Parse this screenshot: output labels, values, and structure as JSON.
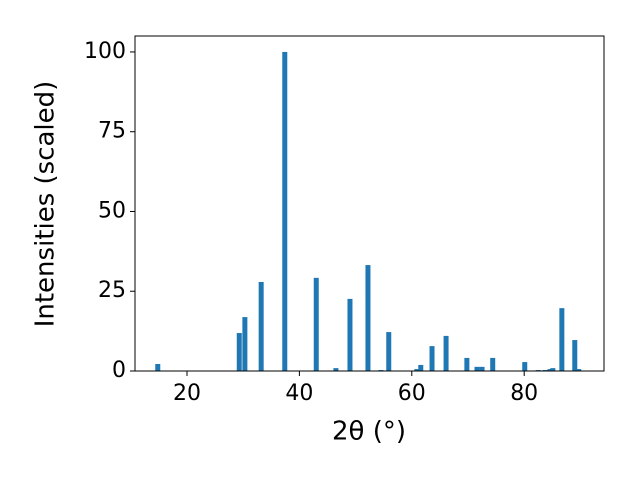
{
  "chart_data": {
    "type": "bar",
    "xlabel": "2θ (°)",
    "ylabel": "Intensities (scaled)",
    "color": "#1f77b4",
    "x": [
      14.8,
      29.3,
      30.3,
      33.2,
      37.4,
      43.0,
      46.5,
      49.0,
      52.2,
      54.5,
      55.9,
      60.9,
      61.6,
      63.6,
      66.1,
      69.8,
      71.6,
      72.5,
      74.4,
      80.1,
      82.5,
      83.7,
      84.6,
      85.1,
      86.7,
      89.0,
      89.7
    ],
    "values": [
      2.2,
      11.9,
      16.9,
      27.9,
      100,
      29.2,
      0.9,
      22.6,
      33.2,
      0.3,
      12.2,
      0.6,
      1.9,
      7.8,
      11.0,
      4.1,
      1.3,
      1.3,
      4.1,
      2.8,
      0.3,
      0.3,
      0.6,
      0.9,
      19.7,
      9.7,
      0.6
    ],
    "xlim": [
      10.75,
      94.2
    ],
    "ylim": [
      0,
      105
    ],
    "xticks": [
      20,
      40,
      60,
      80
    ],
    "yticks": [
      0,
      25,
      50,
      75,
      100
    ]
  }
}
